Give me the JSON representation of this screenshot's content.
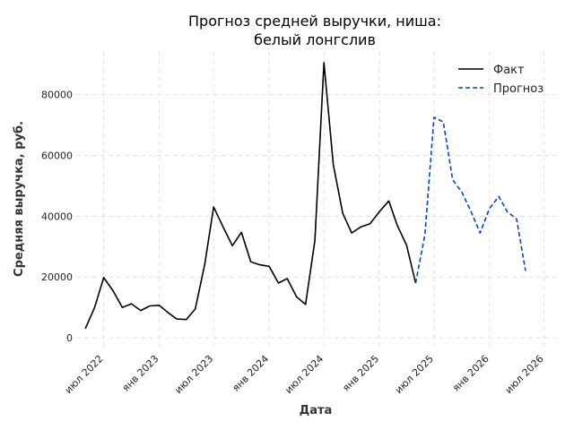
{
  "chart_data": {
    "type": "line",
    "title_lines": [
      "Прогноз средней выручки, ниша:",
      "белый лонгслив"
    ],
    "xlabel": "Дата",
    "ylabel": "Средняя выручка, руб.",
    "x_range": [
      "2022-04-01",
      "2026-08-16"
    ],
    "ylim": [
      -3500,
      94000
    ],
    "y_ticks": [
      0,
      20000,
      40000,
      60000,
      80000
    ],
    "x_ticks": [
      {
        "date": "2022-07-01",
        "label": "июл 2022"
      },
      {
        "date": "2023-01-01",
        "label": "янв 2023"
      },
      {
        "date": "2023-07-01",
        "label": "июл 2023"
      },
      {
        "date": "2024-01-01",
        "label": "янв 2024"
      },
      {
        "date": "2024-07-01",
        "label": "июл 2024"
      },
      {
        "date": "2025-01-01",
        "label": "янв 2025"
      },
      {
        "date": "2025-07-01",
        "label": "июл 2025"
      },
      {
        "date": "2026-01-01",
        "label": "янв 2026"
      },
      {
        "date": "2026-07-01",
        "label": "июл 2026"
      }
    ],
    "grid": true,
    "legend_position": "top-right",
    "series": [
      {
        "name": "Факт",
        "color": "#000000",
        "style": "solid",
        "points": [
          [
            "2022-05-01",
            3000
          ],
          [
            "2022-06-01",
            10000
          ],
          [
            "2022-07-01",
            19800
          ],
          [
            "2022-08-01",
            15500
          ],
          [
            "2022-09-01",
            10000
          ],
          [
            "2022-10-01",
            11200
          ],
          [
            "2022-11-01",
            9000
          ],
          [
            "2022-12-01",
            10500
          ],
          [
            "2023-01-01",
            10700
          ],
          [
            "2023-02-01",
            8200
          ],
          [
            "2023-03-01",
            6200
          ],
          [
            "2023-04-01",
            6000
          ],
          [
            "2023-05-01",
            9500
          ],
          [
            "2023-06-01",
            24000
          ],
          [
            "2023-07-01",
            43000
          ],
          [
            "2023-08-01",
            36500
          ],
          [
            "2023-09-01",
            30300
          ],
          [
            "2023-10-01",
            34700
          ],
          [
            "2023-11-01",
            25000
          ],
          [
            "2023-12-01",
            24000
          ],
          [
            "2024-01-01",
            23500
          ],
          [
            "2024-02-01",
            18000
          ],
          [
            "2024-03-01",
            19500
          ],
          [
            "2024-04-01",
            13500
          ],
          [
            "2024-05-01",
            11000
          ],
          [
            "2024-06-01",
            32000
          ],
          [
            "2024-07-01",
            90500
          ],
          [
            "2024-08-01",
            57000
          ],
          [
            "2024-09-01",
            41000
          ],
          [
            "2024-10-01",
            34500
          ],
          [
            "2024-11-01",
            36500
          ],
          [
            "2024-12-01",
            37500
          ],
          [
            "2025-01-01",
            41500
          ],
          [
            "2025-02-01",
            45000
          ],
          [
            "2025-03-01",
            37000
          ],
          [
            "2025-04-01",
            30500
          ],
          [
            "2025-05-01",
            18000
          ]
        ]
      },
      {
        "name": "Прогноз",
        "color": "#0044cc",
        "style": "dashed",
        "points": [
          [
            "2025-05-01",
            18000
          ],
          [
            "2025-06-01",
            34000
          ],
          [
            "2025-07-01",
            72500
          ],
          [
            "2025-08-01",
            71000
          ],
          [
            "2025-09-01",
            52000
          ],
          [
            "2025-10-01",
            48000
          ],
          [
            "2025-11-01",
            41500
          ],
          [
            "2025-12-01",
            34500
          ],
          [
            "2026-01-01",
            42500
          ],
          [
            "2026-02-01",
            46500
          ],
          [
            "2026-03-01",
            41500
          ],
          [
            "2026-04-01",
            39000
          ],
          [
            "2026-05-01",
            22000
          ]
        ]
      }
    ]
  }
}
